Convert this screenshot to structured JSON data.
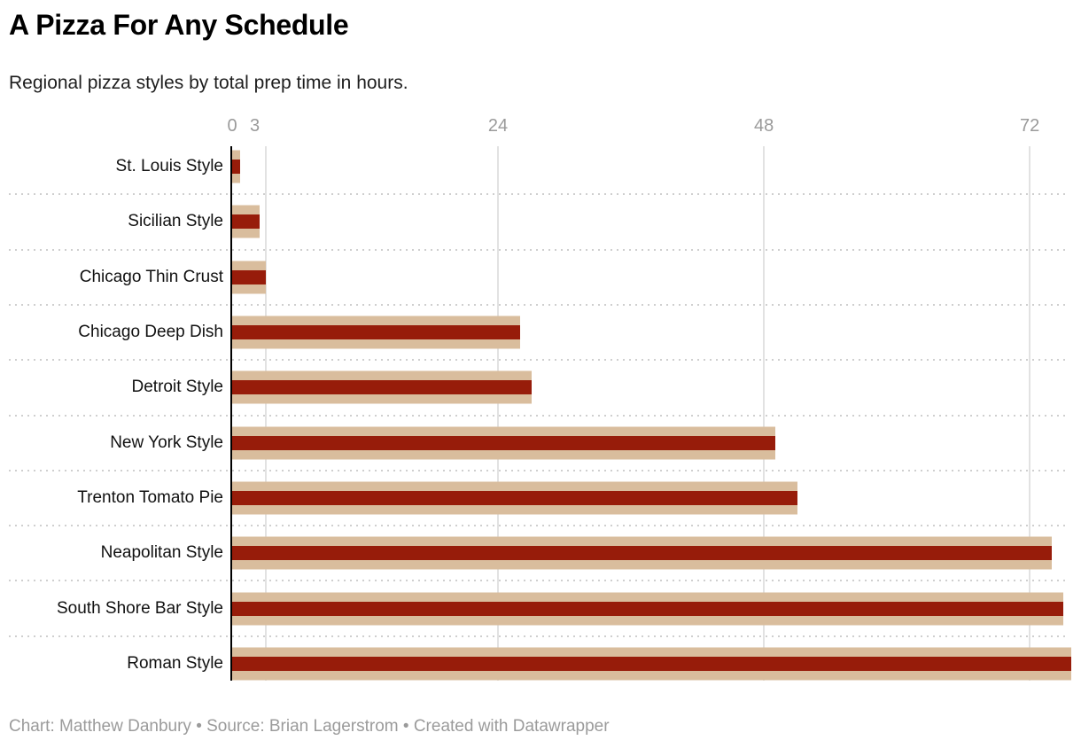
{
  "header": {
    "title": "A Pizza For Any Schedule",
    "subtitle": "Regional pizza styles by total prep time in hours."
  },
  "chart_data": {
    "type": "bar",
    "orientation": "horizontal",
    "title": "A Pizza For Any Schedule",
    "subtitle": "Regional pizza styles by total prep time in hours.",
    "xlabel": "",
    "ylabel": "",
    "unit": "hours",
    "categories": [
      "St. Louis Style",
      "Sicilian Style",
      "Chicago Thin Crust",
      "Chicago Deep Dish",
      "Detroit Style",
      "New York Style",
      "Trenton Tomato Pie",
      "Neapolitan Style",
      "South Shore Bar Style",
      "Roman Style"
    ],
    "values": [
      0.75,
      2.5,
      3,
      26,
      27,
      49,
      51,
      74,
      75,
      75.75
    ],
    "x_ticks": [
      0,
      3,
      24,
      48,
      72
    ],
    "xlim": [
      0,
      75.75
    ],
    "grid": "vertical gridlines at x ticks, dotted horizontal row separators",
    "legend": "none",
    "bar_style": "layered: tall tan background bar with thinner dark-red bar overlaid, equal length, both starting at zero axis",
    "colors": {
      "bar_outer": "#d9bd9d",
      "bar_inner": "#971c0a",
      "axis_line": "#000000",
      "gridline": "#e2e2e2",
      "row_separator": "#cfcfcf",
      "tick_label": "#9a9a9a",
      "category_label": "#111111",
      "footer_text": "#9b9b9b"
    }
  },
  "footer": {
    "text": "Chart: Matthew Danbury • Source: Brian Lagerstrom • Created with Datawrapper"
  }
}
